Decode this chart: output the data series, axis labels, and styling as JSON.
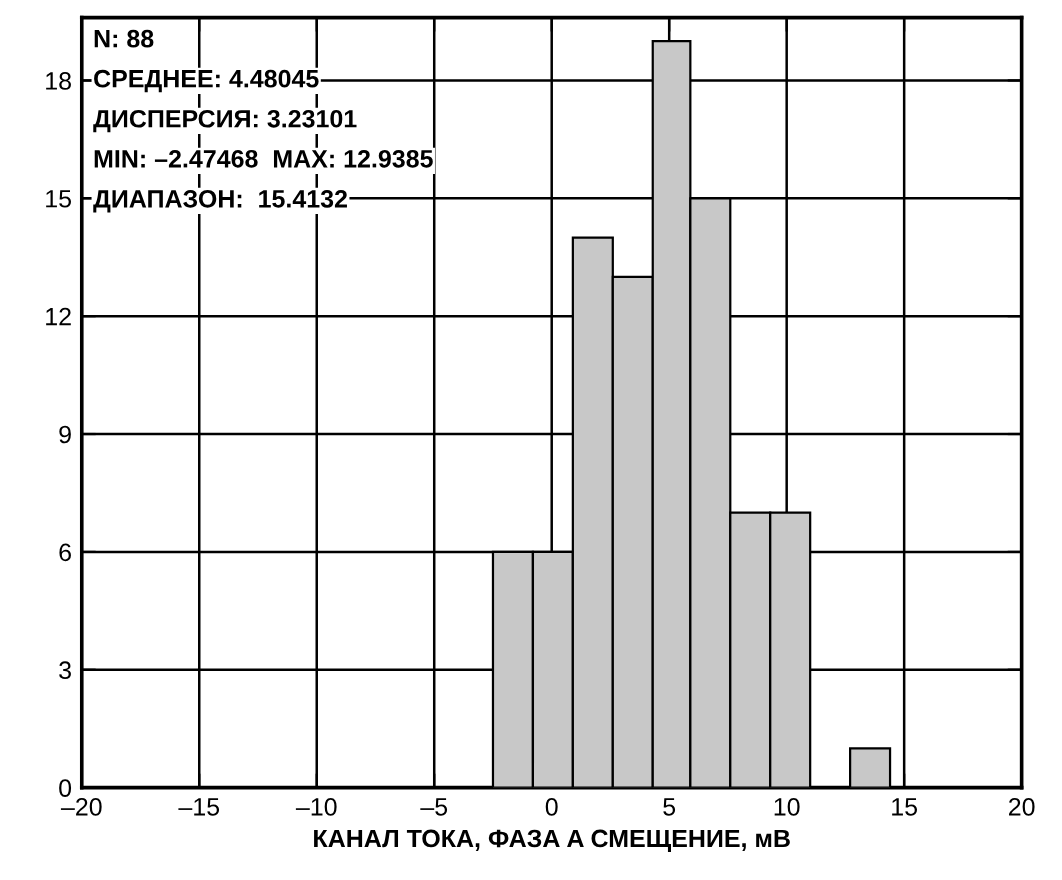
{
  "chart_data": {
    "type": "histogram",
    "bins": [
      -2.5,
      -0.8,
      0.9,
      2.6,
      4.3,
      5.9,
      7.6,
      9.3,
      11.0,
      12.7,
      14.4
    ],
    "values": [
      6,
      6,
      14,
      13,
      19,
      15,
      7,
      7,
      0,
      1
    ],
    "color": "#c8c8c8",
    "xlabel": "КАНАЛ ТОКА, ФАЗА A СМЕЩЕНИЕ, мВ",
    "xlim": [
      -20,
      20
    ],
    "xticks": [
      {
        "value": -20,
        "label": "–20"
      },
      {
        "value": -15,
        "label": "–15"
      },
      {
        "value": -10,
        "label": "–10"
      },
      {
        "value": -5,
        "label": "–5"
      },
      0,
      5,
      10,
      15,
      20
    ],
    "ylim": [
      0,
      19.6
    ],
    "yticks": [
      0,
      3,
      6,
      9,
      12,
      15,
      18
    ],
    "grid": true,
    "annotations": [
      "N: 88",
      "СРЕДНЕЕ: 4.48045",
      "ДИСПЕРСИЯ: 3.23101",
      "MIN: –2.47468  MAX: 12.9385",
      "ДИАПАЗОН:  15.4132"
    ]
  }
}
